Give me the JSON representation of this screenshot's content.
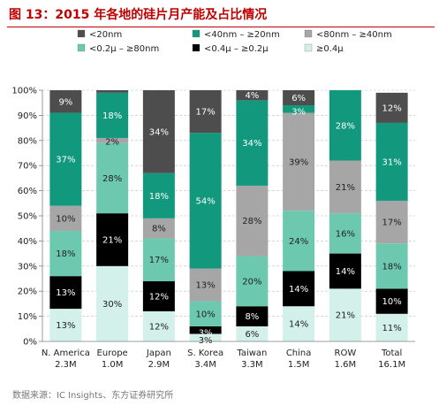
{
  "title": "图 13：2015 年各地的硅片月产能及占比情况",
  "source": "数据来源：IC Insights、东方证券研究所",
  "colors": {
    "<20nm": "#4d4d4d",
    "<40nm – ≥20nm": "#11987d",
    "<80nm – ≥40nm": "#a6a6a6",
    "<0.2µ – ≥80nm": "#6cc9b0",
    "<0.4µ – ≥0.2µ": "#000000",
    "≥0.4µ": "#d3f0ea"
  },
  "chart_data": {
    "type": "bar",
    "stacked": true,
    "normalized": true,
    "categories": [
      "N. America",
      "Europe",
      "Japan",
      "S. Korea",
      "Taiwan",
      "China",
      "ROW",
      "Total"
    ],
    "category_totals": [
      "2.3M",
      "1.0M",
      "2.9M",
      "3.4M",
      "3.3M",
      "1.5M",
      "1.6M",
      "16.1M"
    ],
    "ylim": [
      0,
      100
    ],
    "yticks": [
      "0%",
      "10%",
      "20%",
      "30%",
      "40%",
      "50%",
      "60%",
      "70%",
      "80%",
      "90%",
      "100%"
    ],
    "legend": {
      "placement": "top",
      "entries": [
        "<20nm",
        "<40nm – ≥20nm",
        "<80nm – ≥40nm",
        "<0.2µ – ≥80nm",
        "<0.4µ – ≥0.2µ",
        "≥0.4µ"
      ]
    },
    "series": [
      {
        "name": "≥0.4µ",
        "values": [
          13,
          30,
          12,
          3,
          6,
          14,
          21,
          11
        ],
        "labels": [
          "13%",
          "30%",
          "12%",
          "3%",
          "6%",
          "14%",
          "21%",
          "11%"
        ]
      },
      {
        "name": "<0.4µ – ≥0.2µ",
        "values": [
          13,
          21,
          12,
          3,
          8,
          14,
          14,
          10
        ],
        "labels": [
          "13%",
          "21%",
          "12%",
          "3%",
          "8%",
          "14%",
          "14%",
          "10%"
        ]
      },
      {
        "name": "<0.2µ – ≥80nm",
        "values": [
          18,
          28,
          17,
          10,
          20,
          24,
          16,
          18
        ],
        "labels": [
          "18%",
          "28%",
          "17%",
          "10%",
          "20%",
          "24%",
          "16%",
          "18%"
        ]
      },
      {
        "name": "<80nm – ≥40nm",
        "values": [
          10,
          2,
          8,
          13,
          28,
          39,
          21,
          17
        ],
        "labels": [
          "10%",
          "2%",
          "8%",
          "13%",
          "28%",
          "39%",
          "21%",
          "17%"
        ]
      },
      {
        "name": "<40nm – ≥20nm",
        "values": [
          37,
          18,
          18,
          54,
          34,
          3,
          28,
          31
        ],
        "labels": [
          "37%",
          "18%",
          "18%",
          "54%",
          "34%",
          "3%",
          "28%",
          "31%"
        ]
      },
      {
        "name": "<20nm",
        "values": [
          9,
          1,
          34,
          17,
          4,
          6,
          0,
          12
        ],
        "labels": [
          "9%",
          "<1%",
          "34%",
          "17%",
          "4%",
          "6%",
          "",
          "12%"
        ]
      }
    ]
  }
}
